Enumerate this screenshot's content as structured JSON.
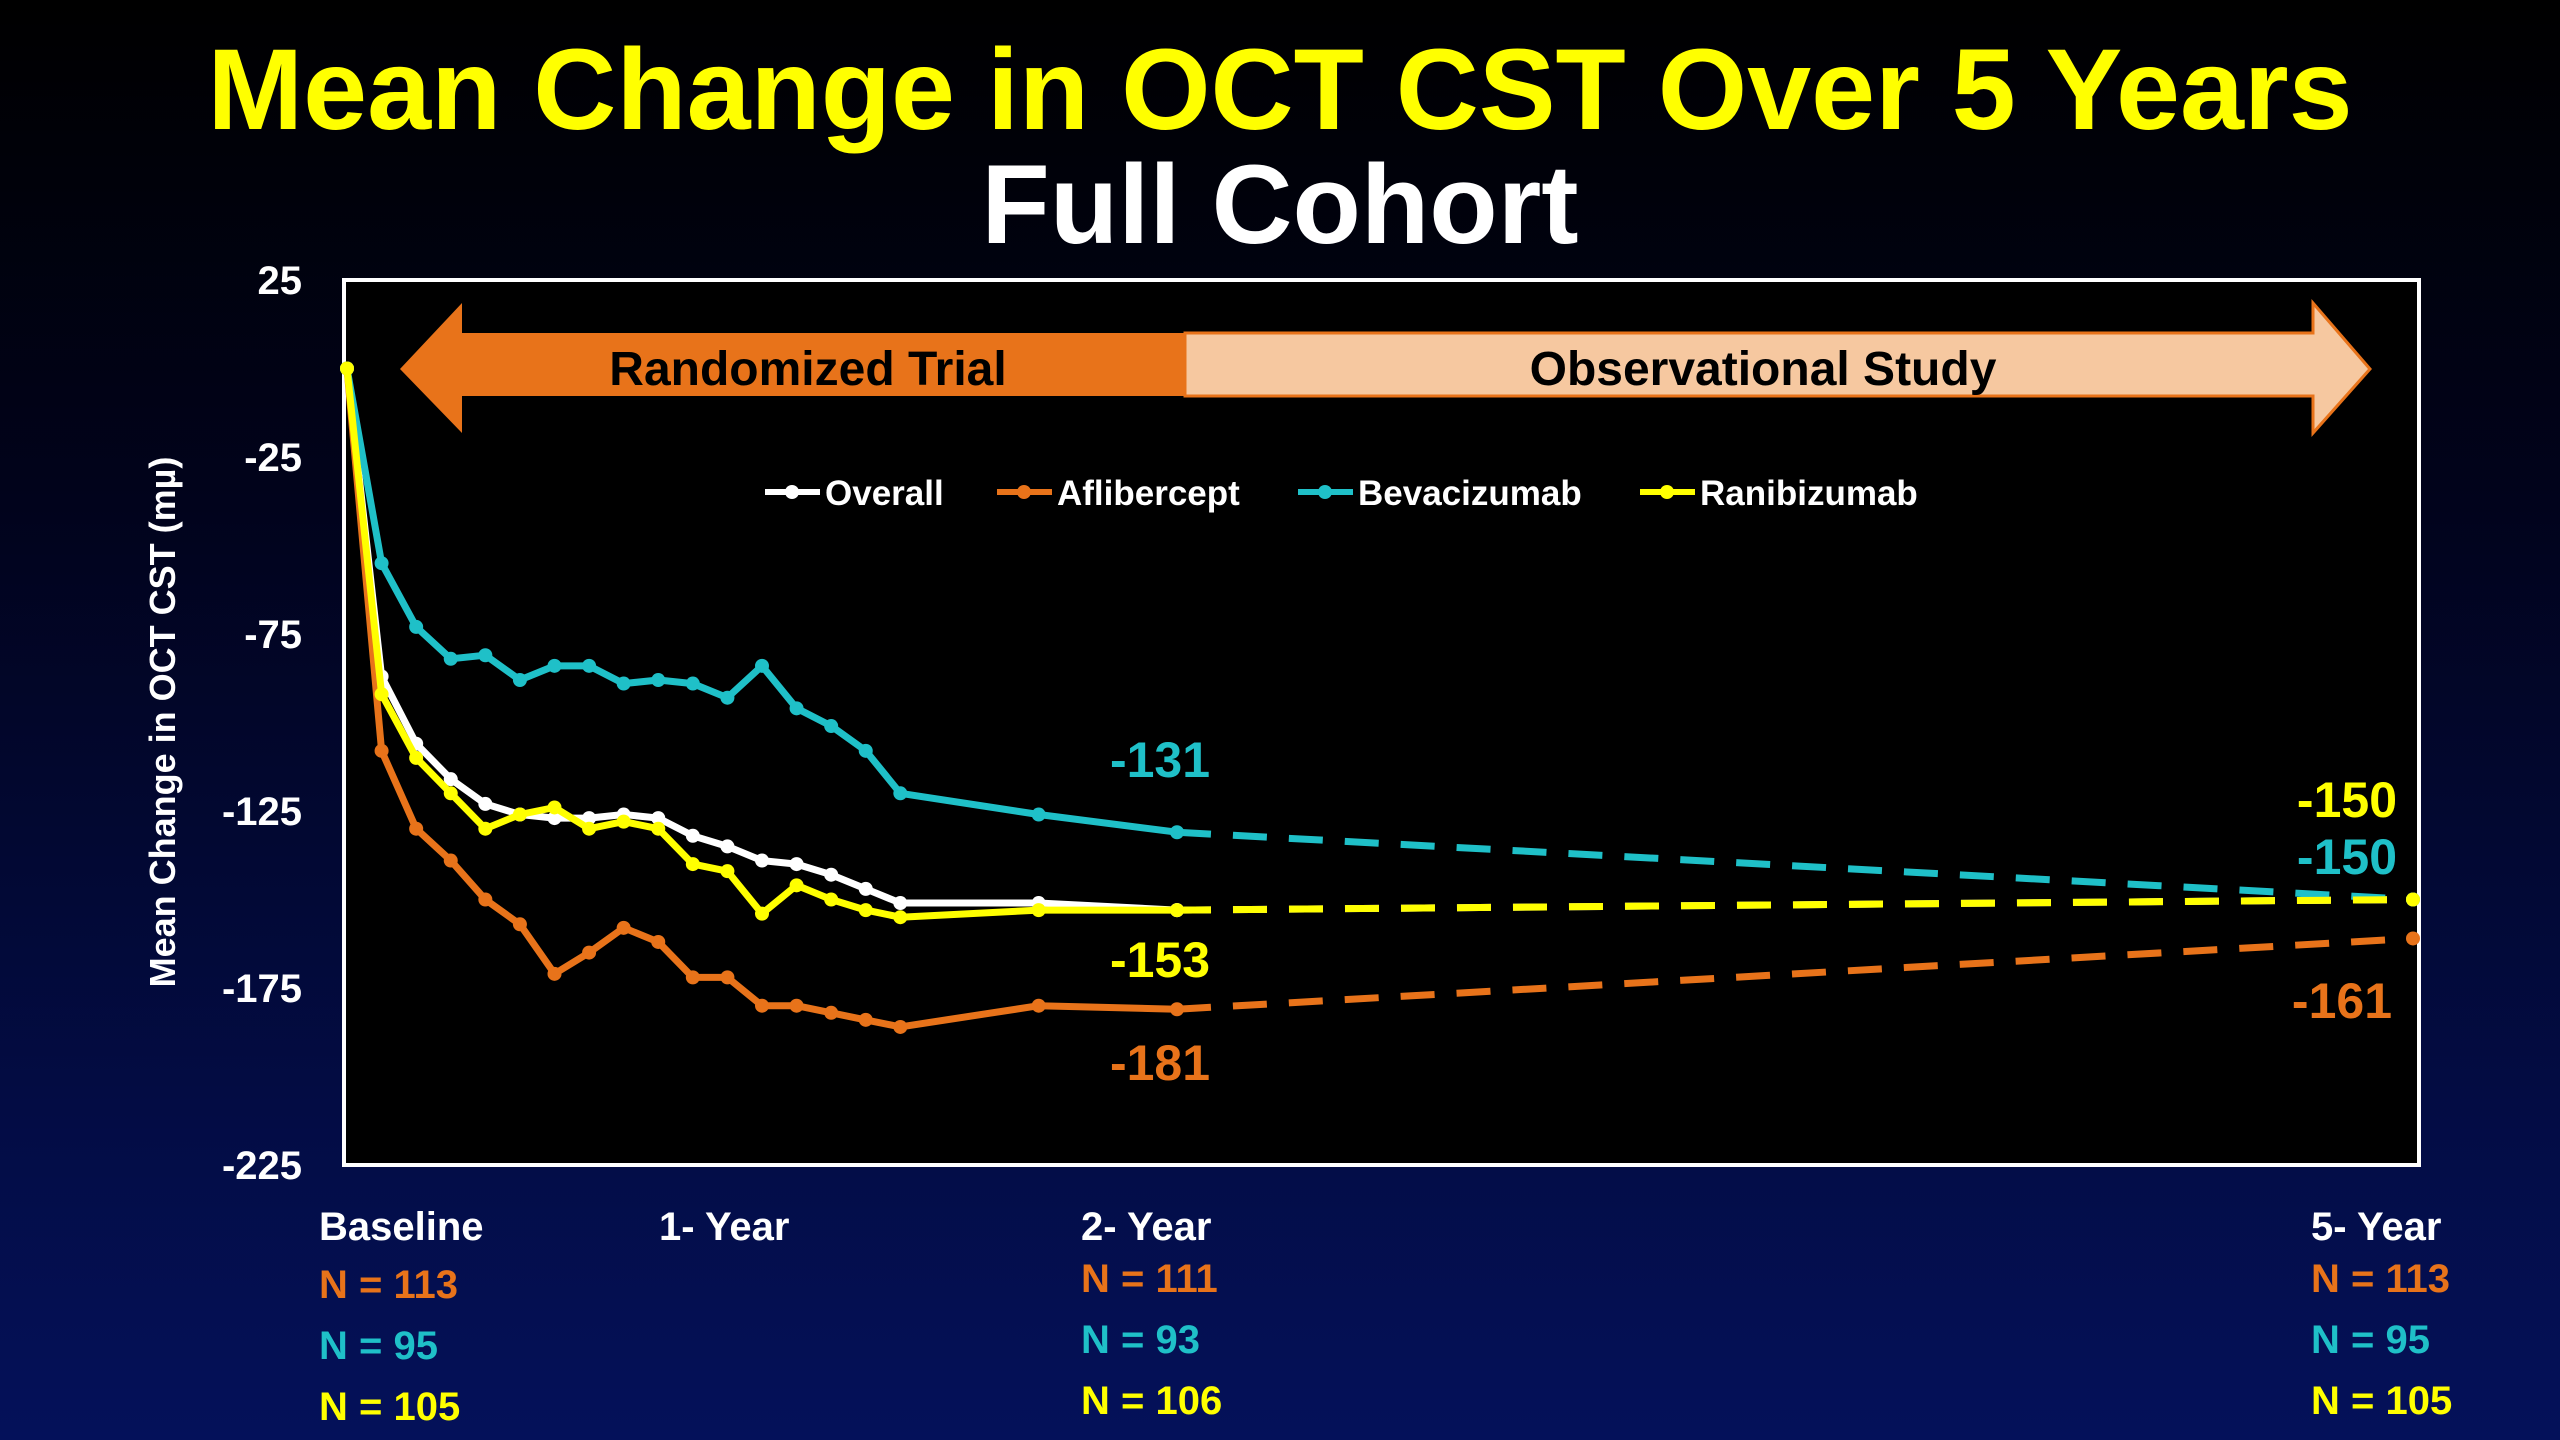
{
  "title": "Mean Change in OCT CST Over 5 Years",
  "subtitle": "Full Cohort",
  "colors": {
    "Overall": "#ffffff",
    "Aflibercept": "#e8731a",
    "Bevacizumab": "#1fc0c8",
    "Ranibizumab": "#ffff00"
  },
  "phases": [
    {
      "label": "Randomized Trial"
    },
    {
      "label": "Observational Study"
    }
  ],
  "timepoints": [
    {
      "label": "Baseline",
      "counts": [
        "N = 113",
        "N = 95",
        "N = 105"
      ]
    },
    {
      "label": "1- Year",
      "counts": []
    },
    {
      "label": "2- Year",
      "counts": [
        "N = 111",
        "N = 93",
        "N = 106"
      ]
    },
    {
      "label": "5- Year",
      "counts": [
        "N = 113",
        "N = 95",
        "N = 105"
      ]
    }
  ],
  "chart_data": {
    "type": "line",
    "title": "Mean Change in OCT CST Over 5 Years",
    "subtitle": "Full Cohort",
    "ylabel": "Mean Change in OCT CST  (mµ)",
    "xlabel": "",
    "ylim": [
      -225,
      25
    ],
    "yticks": [
      25,
      -25,
      -75,
      -125,
      -175,
      -225
    ],
    "xlim": [
      0,
      60
    ],
    "legend_position": "top-center",
    "grid": false,
    "series": [
      {
        "name": "Overall",
        "x": [
          0,
          1,
          2,
          3,
          4,
          5,
          6,
          7,
          8,
          9,
          10,
          11,
          12,
          13,
          14,
          15,
          16,
          20,
          24,
          24
        ],
        "y": [
          0,
          -87,
          -106,
          -116,
          -123,
          -126,
          -127,
          -127,
          -126,
          -127,
          -132,
          -135,
          -139,
          -140,
          -143,
          -147,
          -151,
          -151,
          -153,
          -153
        ],
        "projection_x": [
          24,
          60
        ],
        "projection_y": [
          -153,
          -150
        ]
      },
      {
        "name": "Aflibercept",
        "x": [
          0,
          1,
          2,
          3,
          4,
          5,
          6,
          7,
          8,
          9,
          10,
          11,
          12,
          13,
          14,
          15,
          16,
          20,
          24
        ],
        "y": [
          0,
          -108,
          -130,
          -139,
          -150,
          -157,
          -171,
          -165,
          -158,
          -162,
          -172,
          -172,
          -180,
          -180,
          -182,
          -184,
          -186,
          -180,
          -181
        ],
        "projection_x": [
          24,
          60
        ],
        "projection_y": [
          -181,
          -161
        ]
      },
      {
        "name": "Bevacizumab",
        "x": [
          0,
          1,
          2,
          3,
          4,
          5,
          6,
          7,
          8,
          9,
          10,
          11,
          12,
          13,
          14,
          15,
          16,
          20,
          24
        ],
        "y": [
          0,
          -55,
          -73,
          -82,
          -81,
          -88,
          -84,
          -84,
          -89,
          -88,
          -89,
          -93,
          -84,
          -96,
          -101,
          -108,
          -120,
          -126,
          -131
        ],
        "projection_x": [
          24,
          60
        ],
        "projection_y": [
          -131,
          -150
        ]
      },
      {
        "name": "Ranibizumab",
        "x": [
          0,
          1,
          2,
          3,
          4,
          5,
          6,
          7,
          8,
          9,
          10,
          11,
          12,
          13,
          14,
          15,
          16,
          20,
          24
        ],
        "y": [
          0,
          -92,
          -110,
          -120,
          -130,
          -126,
          -124,
          -130,
          -128,
          -130,
          -140,
          -142,
          -154,
          -146,
          -150,
          -153,
          -155,
          -153,
          -153
        ],
        "projection_x": [
          24,
          60
        ],
        "projection_y": [
          -153,
          -150
        ]
      }
    ],
    "annotations": [
      {
        "text": "-131",
        "series": "Bevacizumab",
        "at": "2- Year"
      },
      {
        "text": "-153",
        "series": "Ranibizumab",
        "at": "2- Year"
      },
      {
        "text": "-181",
        "series": "Aflibercept",
        "at": "2- Year"
      },
      {
        "text": "-150",
        "series": "Ranibizumab",
        "at": "5- Year"
      },
      {
        "text": "-150",
        "series": "Bevacizumab",
        "at": "5- Year"
      },
      {
        "text": "-161",
        "series": "Aflibercept",
        "at": "5- Year"
      }
    ]
  }
}
